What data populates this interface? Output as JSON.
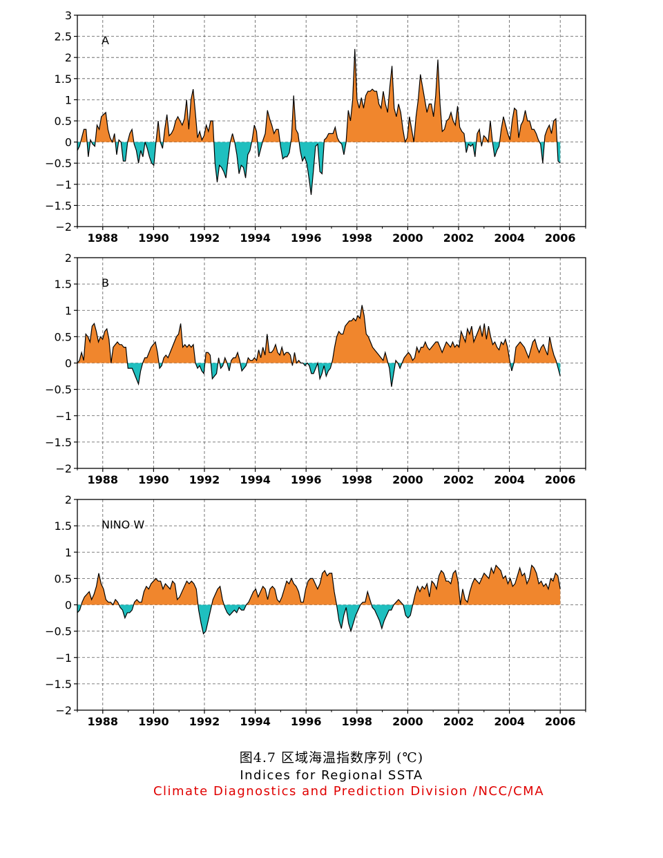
{
  "captions": {
    "figure_cn": "图4.7 区域海温指数序列 (℃)",
    "figure_en": "Indices for Regional SSTA",
    "credit": "Climate Diagnostics and Prediction Division /NCC/CMA"
  },
  "colors": {
    "positive_fill": "#f0862d",
    "negative_fill": "#1fbfbf",
    "line": "#000000",
    "grid": "#555555",
    "credit_text": "#e00000"
  },
  "chart_data": [
    {
      "type": "area",
      "panel_label": "A",
      "x_start": 1987.0,
      "x_end": 2006.0,
      "xlim": [
        1987.0,
        2007.0
      ],
      "ylim": [
        -2,
        3
      ],
      "yticks": [
        "-2",
        "-1.5",
        "-1",
        "-0.5",
        "0",
        "0.5",
        "1",
        "1.5",
        "2",
        "2.5",
        "3"
      ],
      "xticks": [
        "1988",
        "1990",
        "1992",
        "1994",
        "1996",
        "1998",
        "2000",
        "2002",
        "2004",
        "2006"
      ],
      "grid": true,
      "values": [
        -0.2,
        -0.1,
        0.1,
        0.3,
        0.3,
        -0.35,
        0.05,
        -0.05,
        -0.1,
        0.4,
        0.3,
        0.6,
        0.65,
        0.7,
        0.3,
        0.1,
        0.0,
        0.2,
        -0.3,
        0.05,
        0.0,
        -0.45,
        -0.45,
        0.0,
        0.2,
        0.3,
        -0.05,
        -0.2,
        -0.5,
        -0.2,
        -0.35,
        0.0,
        -0.15,
        -0.35,
        -0.5,
        -0.55,
        0.0,
        0.5,
        0.0,
        -0.15,
        0.3,
        0.65,
        0.15,
        0.2,
        0.3,
        0.5,
        0.6,
        0.5,
        0.4,
        0.55,
        1.0,
        0.3,
        1.0,
        1.25,
        0.7,
        0.1,
        0.25,
        0.05,
        0.15,
        0.4,
        0.25,
        0.5,
        0.5,
        -0.5,
        -0.95,
        -0.55,
        -0.6,
        -0.7,
        -0.85,
        -0.4,
        0.0,
        0.2,
        0.0,
        -0.3,
        -0.75,
        -0.55,
        -0.6,
        -0.85,
        -0.3,
        -0.2,
        0.05,
        0.4,
        0.25,
        -0.35,
        -0.15,
        0.05,
        0.2,
        0.75,
        0.55,
        0.4,
        0.2,
        0.3,
        0.3,
        -0.1,
        -0.4,
        -0.35,
        -0.35,
        -0.25,
        0.1,
        1.1,
        0.3,
        0.2,
        -0.2,
        -0.45,
        -0.35,
        -0.5,
        -0.85,
        -1.25,
        -0.7,
        -0.1,
        -0.05,
        -0.7,
        -0.75,
        0.05,
        0.1,
        0.2,
        0.2,
        0.2,
        0.35,
        0.1,
        0.0,
        -0.05,
        -0.3,
        0.0,
        0.75,
        0.5,
        1.0,
        2.2,
        1.0,
        0.8,
        1.05,
        0.8,
        1.1,
        1.2,
        1.2,
        1.25,
        1.2,
        1.2,
        0.9,
        0.8,
        1.2,
        0.9,
        0.7,
        1.3,
        1.8,
        0.8,
        0.6,
        0.9,
        0.7,
        0.3,
        0.0,
        0.1,
        0.6,
        0.3,
        0.0,
        0.6,
        1.0,
        1.6,
        1.3,
        1.0,
        0.7,
        0.9,
        0.9,
        0.6,
        1.1,
        1.95,
        0.9,
        0.25,
        0.3,
        0.5,
        0.55,
        0.7,
        0.5,
        0.4,
        0.85,
        0.35,
        0.25,
        0.2,
        -0.25,
        -0.05,
        -0.1,
        -0.05,
        -0.35,
        0.2,
        0.3,
        -0.1,
        0.15,
        0.1,
        0.0,
        0.5,
        0.0,
        -0.35,
        -0.2,
        -0.1,
        0.3,
        0.6,
        0.4,
        0.2,
        0.05,
        0.5,
        0.8,
        0.75,
        0.1,
        0.4,
        0.5,
        0.75,
        0.5,
        0.5,
        0.3,
        0.3,
        0.2,
        0.05,
        -0.05,
        -0.5,
        0.15,
        0.3,
        0.4,
        0.2,
        0.5,
        0.55,
        -0.45,
        -0.5
      ]
    },
    {
      "type": "area",
      "panel_label": "B",
      "x_start": 1987.0,
      "x_end": 2006.0,
      "xlim": [
        1987.0,
        2007.0
      ],
      "ylim": [
        -2,
        2
      ],
      "yticks": [
        "-2",
        "-1.5",
        "-1",
        "-0.5",
        "0",
        "0.5",
        "1",
        "1.5",
        "2"
      ],
      "xticks": [
        "1988",
        "1990",
        "1992",
        "1994",
        "1996",
        "1998",
        "2000",
        "2002",
        "2004",
        "2006"
      ],
      "grid": true,
      "values": [
        0.0,
        0.05,
        0.2,
        0.05,
        0.55,
        0.5,
        0.4,
        0.7,
        0.75,
        0.6,
        0.4,
        0.5,
        0.45,
        0.6,
        0.65,
        0.45,
        0.0,
        0.3,
        0.35,
        0.4,
        0.35,
        0.35,
        0.3,
        0.3,
        -0.1,
        -0.1,
        -0.1,
        -0.2,
        -0.3,
        -0.4,
        -0.15,
        0.0,
        0.1,
        0.1,
        0.2,
        0.3,
        0.35,
        0.4,
        0.2,
        -0.1,
        -0.05,
        0.1,
        0.15,
        0.1,
        0.2,
        0.3,
        0.4,
        0.5,
        0.55,
        0.75,
        0.3,
        0.35,
        0.3,
        0.35,
        0.3,
        0.35,
        0.0,
        -0.1,
        -0.05,
        -0.15,
        -0.2,
        0.2,
        0.2,
        0.15,
        -0.3,
        -0.25,
        -0.2,
        0.1,
        -0.1,
        -0.05,
        0.1,
        0.0,
        -0.15,
        0.05,
        0.1,
        0.1,
        0.2,
        0.05,
        -0.15,
        -0.1,
        -0.05,
        0.1,
        0.05,
        0.05,
        0.1,
        0.05,
        0.25,
        0.1,
        0.3,
        0.15,
        0.55,
        0.2,
        0.2,
        0.25,
        0.35,
        0.2,
        0.15,
        0.3,
        0.15,
        0.2,
        0.2,
        0.15,
        -0.05,
        0.2,
        0.0,
        0.05,
        0.0,
        0.0,
        -0.05,
        0.0,
        -0.05,
        -0.2,
        -0.2,
        -0.1,
        0.0,
        -0.3,
        -0.2,
        -0.05,
        -0.25,
        -0.15,
        -0.1,
        0.05,
        0.3,
        0.5,
        0.6,
        0.55,
        0.55,
        0.7,
        0.75,
        0.8,
        0.8,
        0.85,
        0.8,
        0.9,
        0.85,
        1.1,
        0.9,
        0.55,
        0.5,
        0.4,
        0.3,
        0.25,
        0.2,
        0.15,
        0.1,
        0.05,
        0.2,
        0.05,
        -0.1,
        -0.45,
        -0.2,
        0.05,
        0.0,
        -0.1,
        0.0,
        0.1,
        0.15,
        0.2,
        0.15,
        0.05,
        0.1,
        0.3,
        0.2,
        0.3,
        0.3,
        0.4,
        0.3,
        0.25,
        0.3,
        0.35,
        0.4,
        0.4,
        0.3,
        0.2,
        0.3,
        0.4,
        0.35,
        0.3,
        0.4,
        0.3,
        0.35,
        0.3,
        0.6,
        0.5,
        0.4,
        0.65,
        0.55,
        0.7,
        0.4,
        0.5,
        0.6,
        0.7,
        0.5,
        0.75,
        0.45,
        0.7,
        0.5,
        0.35,
        0.4,
        0.3,
        0.25,
        0.4,
        0.35,
        0.45,
        0.3,
        0.05,
        -0.15,
        0.0,
        0.3,
        0.35,
        0.4,
        0.35,
        0.3,
        0.2,
        0.1,
        0.25,
        0.4,
        0.45,
        0.3,
        0.2,
        0.3,
        0.35,
        0.25,
        0.15,
        0.5,
        0.3,
        0.15,
        0.05,
        -0.1,
        -0.25
      ]
    },
    {
      "type": "area",
      "panel_label": "NINO W",
      "x_start": 1987.0,
      "x_end": 2006.0,
      "xlim": [
        1987.0,
        2007.0
      ],
      "ylim": [
        -2,
        2
      ],
      "yticks": [
        "-2",
        "-1.5",
        "-1",
        "-0.5",
        "0",
        "0.5",
        "1",
        "1.5",
        "2"
      ],
      "xticks": [
        "1988",
        "1990",
        "1992",
        "1994",
        "1996",
        "1998",
        "2000",
        "2002",
        "2004",
        "2006"
      ],
      "grid": true,
      "values": [
        -0.15,
        -0.1,
        0.05,
        0.15,
        0.2,
        0.25,
        0.1,
        0.2,
        0.35,
        0.6,
        0.4,
        0.3,
        0.1,
        0.05,
        0.05,
        0.0,
        0.1,
        0.05,
        -0.05,
        -0.1,
        -0.25,
        -0.15,
        -0.15,
        -0.1,
        0.05,
        0.1,
        0.05,
        0.05,
        0.25,
        0.35,
        0.3,
        0.4,
        0.45,
        0.5,
        0.45,
        0.45,
        0.3,
        0.4,
        0.35,
        0.3,
        0.45,
        0.4,
        0.1,
        0.15,
        0.25,
        0.35,
        0.45,
        0.4,
        0.45,
        0.4,
        0.3,
        -0.1,
        -0.35,
        -0.55,
        -0.5,
        -0.3,
        -0.1,
        0.1,
        0.2,
        0.3,
        0.35,
        0.1,
        -0.05,
        -0.15,
        -0.2,
        -0.15,
        -0.1,
        -0.15,
        -0.05,
        -0.1,
        -0.1,
        0.0,
        0.05,
        0.15,
        0.25,
        0.3,
        0.15,
        0.25,
        0.35,
        0.3,
        0.1,
        0.3,
        0.35,
        0.3,
        0.1,
        0.05,
        0.15,
        0.3,
        0.45,
        0.4,
        0.5,
        0.4,
        0.35,
        0.25,
        0.05,
        0.05,
        0.3,
        0.45,
        0.5,
        0.5,
        0.4,
        0.3,
        0.4,
        0.6,
        0.65,
        0.55,
        0.6,
        0.6,
        0.25,
        0.0,
        -0.3,
        -0.45,
        -0.2,
        -0.05,
        -0.35,
        -0.5,
        -0.35,
        -0.2,
        -0.1,
        0.0,
        0.05,
        0.05,
        0.25,
        0.1,
        -0.05,
        -0.1,
        -0.2,
        -0.3,
        -0.45,
        -0.3,
        -0.2,
        -0.1,
        -0.1,
        0.0,
        0.05,
        0.1,
        0.05,
        0.0,
        -0.2,
        -0.25,
        -0.2,
        0.0,
        0.2,
        0.35,
        0.25,
        0.35,
        0.3,
        0.4,
        0.15,
        0.45,
        0.4,
        0.3,
        0.55,
        0.65,
        0.6,
        0.45,
        0.45,
        0.4,
        0.6,
        0.65,
        0.45,
        0.0,
        0.3,
        0.1,
        0.05,
        0.25,
        0.4,
        0.5,
        0.45,
        0.4,
        0.5,
        0.6,
        0.55,
        0.5,
        0.7,
        0.6,
        0.75,
        0.7,
        0.65,
        0.5,
        0.55,
        0.4,
        0.5,
        0.35,
        0.4,
        0.55,
        0.7,
        0.55,
        0.6,
        0.4,
        0.5,
        0.75,
        0.7,
        0.6,
        0.4,
        0.45,
        0.35,
        0.4,
        0.3,
        0.5,
        0.45,
        0.6,
        0.55,
        0.3
      ]
    }
  ]
}
